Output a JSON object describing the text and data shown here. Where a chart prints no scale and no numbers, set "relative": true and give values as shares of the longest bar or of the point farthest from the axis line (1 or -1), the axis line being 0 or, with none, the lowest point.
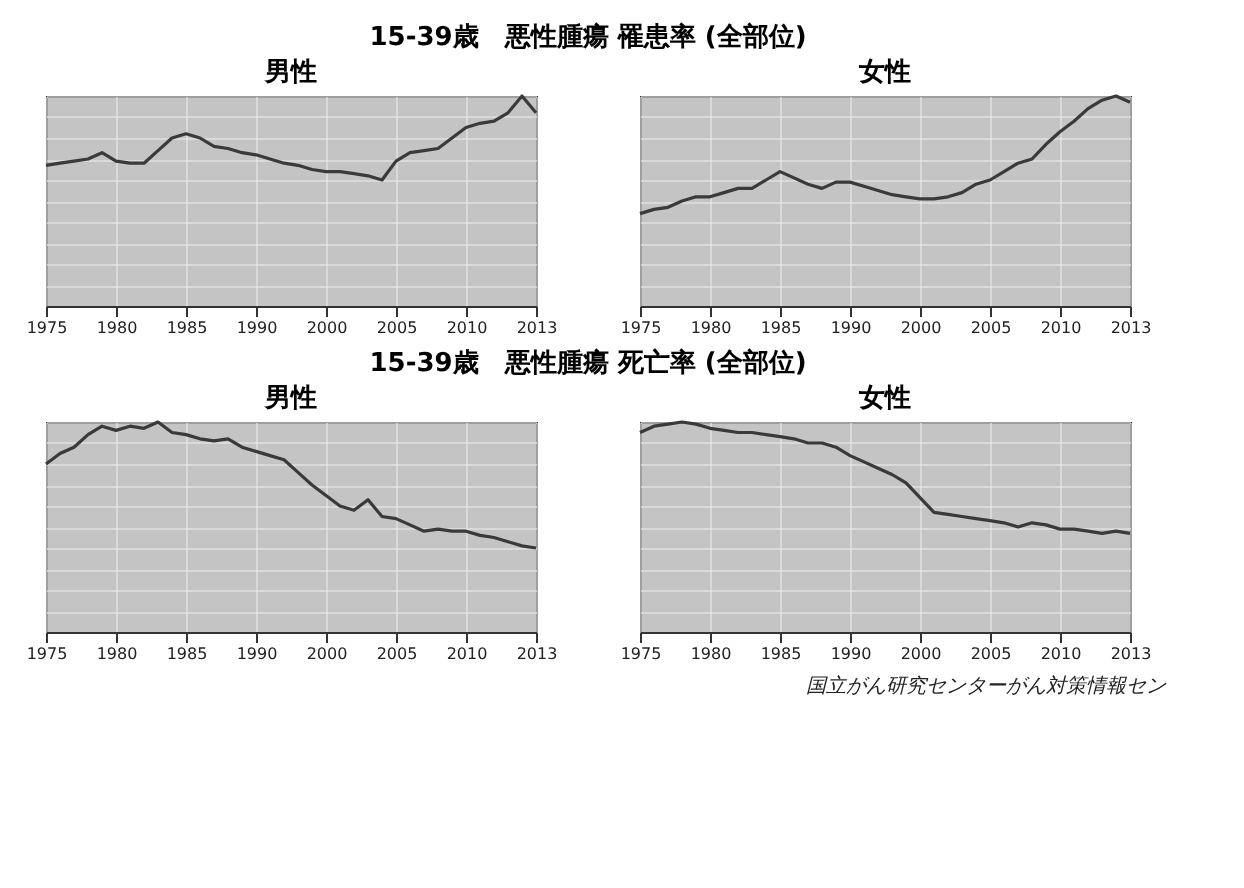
{
  "chart_data": [
    {
      "type": "line",
      "title": "15-39歳　悪性腫瘍 罹患率 (全部位)",
      "subtitle": "男性",
      "relative": true,
      "grid": true,
      "categories": [
        "1975",
        null,
        null,
        null,
        null,
        "1980",
        null,
        null,
        null,
        null,
        "1985",
        null,
        null,
        null,
        null,
        "1990",
        null,
        null,
        null,
        null,
        "2000",
        null,
        null,
        null,
        null,
        "2005",
        null,
        null,
        null,
        null,
        "2010",
        null,
        null,
        null,
        null,
        "2013"
      ],
      "series": [
        {
          "color": "#3a3a3a",
          "values": [
            0.67,
            0.68,
            0.69,
            0.7,
            0.73,
            0.69,
            0.68,
            0.68,
            0.74,
            0.8,
            0.82,
            0.8,
            0.76,
            0.75,
            0.73,
            0.72,
            0.7,
            0.68,
            0.67,
            0.65,
            0.64,
            0.64,
            0.63,
            0.62,
            0.6,
            0.69,
            0.73,
            0.74,
            0.75,
            0.8,
            0.85,
            0.87,
            0.88,
            0.92,
            1,
            0.92
          ]
        }
      ]
    },
    {
      "type": "line",
      "title": "女性",
      "relative": true,
      "grid": true,
      "categories": [
        "1975",
        null,
        null,
        null,
        null,
        "1980",
        null,
        null,
        null,
        null,
        "1985",
        null,
        null,
        null,
        null,
        "1990",
        null,
        null,
        null,
        null,
        "2000",
        null,
        null,
        null,
        null,
        "2005",
        null,
        null,
        null,
        null,
        "2010",
        null,
        null,
        null,
        null,
        "2013"
      ],
      "series": [
        {
          "color": "#3a3a3a",
          "values": [
            0.44,
            0.46,
            0.47,
            0.5,
            0.52,
            0.52,
            0.54,
            0.56,
            0.56,
            0.6,
            0.64,
            0.61,
            0.58,
            0.56,
            0.59,
            0.59,
            0.57,
            0.55,
            0.53,
            0.52,
            0.51,
            0.51,
            0.52,
            0.54,
            0.58,
            0.6,
            0.64,
            0.68,
            0.7,
            0.77,
            0.83,
            0.88,
            0.94,
            0.98,
            1,
            0.97
          ]
        }
      ]
    },
    {
      "type": "line",
      "title": "15-39歳　悪性腫瘍 死亡率 (全部位)",
      "subtitle": "男性",
      "relative": true,
      "grid": true,
      "categories": [
        "1975",
        null,
        null,
        null,
        null,
        "1980",
        null,
        null,
        null,
        null,
        "1985",
        null,
        null,
        null,
        null,
        "1990",
        null,
        null,
        null,
        null,
        "2000",
        null,
        null,
        null,
        null,
        "2005",
        null,
        null,
        null,
        null,
        "2010",
        null,
        null,
        null,
        null,
        "2013"
      ],
      "series": [
        {
          "color": "#3a3a3a",
          "values": [
            0.8,
            0.85,
            0.88,
            0.94,
            0.98,
            0.96,
            0.98,
            0.97,
            1,
            0.95,
            0.94,
            0.92,
            0.91,
            0.92,
            0.88,
            0.86,
            0.84,
            0.82,
            0.76,
            0.7,
            0.65,
            0.6,
            0.58,
            0.63,
            0.55,
            0.54,
            0.51,
            0.48,
            0.49,
            0.48,
            0.48,
            0.46,
            0.45,
            0.43,
            0.41,
            0.4
          ]
        }
      ]
    },
    {
      "type": "line",
      "title": "女性",
      "relative": true,
      "grid": true,
      "categories": [
        "1975",
        null,
        null,
        null,
        null,
        "1980",
        null,
        null,
        null,
        null,
        "1985",
        null,
        null,
        null,
        null,
        "1990",
        null,
        null,
        null,
        null,
        "2000",
        null,
        null,
        null,
        null,
        "2005",
        null,
        null,
        null,
        null,
        "2010",
        null,
        null,
        null,
        null,
        "2013"
      ],
      "series": [
        {
          "color": "#3a3a3a",
          "values": [
            0.95,
            0.98,
            0.99,
            1,
            0.99,
            0.97,
            0.96,
            0.95,
            0.95,
            0.94,
            0.93,
            0.92,
            0.9,
            0.9,
            0.88,
            0.84,
            0.81,
            0.78,
            0.75,
            0.71,
            0.64,
            0.57,
            0.56,
            0.55,
            0.54,
            0.53,
            0.52,
            0.5,
            0.52,
            0.51,
            0.49,
            0.49,
            0.48,
            0.47,
            0.48,
            0.47
          ]
        }
      ],
      "annotations": [
        "国立がん研究センターがん対策情報セン"
      ]
    }
  ]
}
